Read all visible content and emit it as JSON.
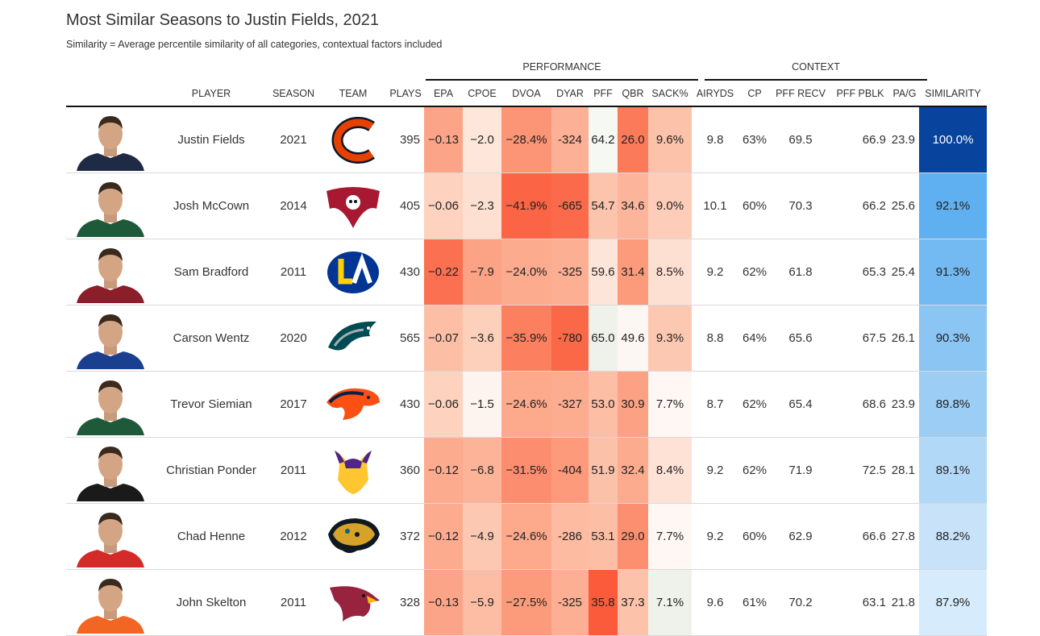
{
  "title": "Most Similar Seasons to Justin Fields, 2021",
  "subtitle": "Similarity = Average percentile similarity of all categories, contextual factors included",
  "groups": {
    "performance": "PERFORMANCE",
    "context": "CONTEXT"
  },
  "columns": {
    "player": "PLAYER",
    "season": "SEASON",
    "team": "TEAM",
    "plays": "PLAYS",
    "epa": "EPA",
    "cpoe": "CPOE",
    "dvoa": "DVOA",
    "dyar": "DYAR",
    "pff": "PFF",
    "qbr": "QBR",
    "sack": "SACK%",
    "airyds": "AIRYDS",
    "cp": "CP",
    "pffrecv": "PFF RECV",
    "pffpblk": "PFF PBLK",
    "pag": "PA/G",
    "similarity": "SIMILARITY"
  },
  "rows": [
    {
      "player": "Justin Fields",
      "season": "2021",
      "team_icon": "chicago-bears-logo-icon",
      "plays": "395",
      "epa": "−0.13",
      "cpoe": "−2.0",
      "dvoa": "−28.4%",
      "dyar": "-324",
      "pff": "64.2",
      "qbr": "26.0",
      "sack": "9.6%",
      "airyds": "9.8",
      "cp": "63%",
      "pffrecv": "69.5",
      "pffpblk": "66.9",
      "pag": "23.9",
      "similarity": "100.0%"
    },
    {
      "player": "Josh McCown",
      "season": "2014",
      "team_icon": "tampa-bay-buccaneers-logo-icon",
      "plays": "405",
      "epa": "−0.06",
      "cpoe": "−2.3",
      "dvoa": "−41.9%",
      "dyar": "-665",
      "pff": "54.7",
      "qbr": "34.6",
      "sack": "9.0%",
      "airyds": "10.1",
      "cp": "60%",
      "pffrecv": "70.3",
      "pffpblk": "66.2",
      "pag": "25.6",
      "similarity": "92.1%"
    },
    {
      "player": "Sam Bradford",
      "season": "2011",
      "team_icon": "los-angeles-rams-logo-icon",
      "plays": "430",
      "epa": "−0.22",
      "cpoe": "−7.9",
      "dvoa": "−24.0%",
      "dyar": "-325",
      "pff": "59.6",
      "qbr": "31.4",
      "sack": "8.5%",
      "airyds": "9.2",
      "cp": "62%",
      "pffrecv": "61.8",
      "pffpblk": "65.3",
      "pag": "25.4",
      "similarity": "91.3%"
    },
    {
      "player": "Carson Wentz",
      "season": "2020",
      "team_icon": "philadelphia-eagles-logo-icon",
      "plays": "565",
      "epa": "−0.07",
      "cpoe": "−3.6",
      "dvoa": "−35.9%",
      "dyar": "-780",
      "pff": "65.0",
      "qbr": "49.6",
      "sack": "9.3%",
      "airyds": "8.8",
      "cp": "64%",
      "pffrecv": "65.6",
      "pffpblk": "67.5",
      "pag": "26.1",
      "similarity": "90.3%"
    },
    {
      "player": "Trevor Siemian",
      "season": "2017",
      "team_icon": "denver-broncos-logo-icon",
      "plays": "430",
      "epa": "−0.06",
      "cpoe": "−1.5",
      "dvoa": "−24.6%",
      "dyar": "-327",
      "pff": "53.0",
      "qbr": "30.9",
      "sack": "7.7%",
      "airyds": "8.7",
      "cp": "62%",
      "pffrecv": "65.4",
      "pffpblk": "68.6",
      "pag": "23.9",
      "similarity": "89.8%"
    },
    {
      "player": "Christian Ponder",
      "season": "2011",
      "team_icon": "minnesota-vikings-logo-icon",
      "plays": "360",
      "epa": "−0.12",
      "cpoe": "−6.8",
      "dvoa": "−31.5%",
      "dyar": "-404",
      "pff": "51.9",
      "qbr": "32.4",
      "sack": "8.4%",
      "airyds": "9.2",
      "cp": "62%",
      "pffrecv": "71.9",
      "pffpblk": "72.5",
      "pag": "28.1",
      "similarity": "89.1%"
    },
    {
      "player": "Chad Henne",
      "season": "2012",
      "team_icon": "jacksonville-jaguars-logo-icon",
      "plays": "372",
      "epa": "−0.12",
      "cpoe": "−4.9",
      "dvoa": "−24.6%",
      "dyar": "-286",
      "pff": "53.1",
      "qbr": "29.0",
      "sack": "7.7%",
      "airyds": "9.2",
      "cp": "60%",
      "pffrecv": "62.9",
      "pffpblk": "66.6",
      "pag": "27.8",
      "similarity": "88.2%"
    },
    {
      "player": "John Skelton",
      "season": "2011",
      "team_icon": "arizona-cardinals-logo-icon",
      "plays": "328",
      "epa": "−0.13",
      "cpoe": "−5.9",
      "dvoa": "−27.5%",
      "dyar": "-325",
      "pff": "35.8",
      "qbr": "37.3",
      "sack": "7.1%",
      "airyds": "9.6",
      "cp": "61%",
      "pffrecv": "70.2",
      "pffpblk": "63.1",
      "pag": "21.8",
      "similarity": "87.9%"
    }
  ],
  "cell_colors": {
    "epa": [
      "#fca488",
      "#fdd2bf",
      "#fb7050",
      "#fcbea5",
      "#fdd2bf",
      "#fcab8f",
      "#fcab8f",
      "#fca488"
    ],
    "cpoe": [
      "#fee6da",
      "#fee0d2",
      "#fca285",
      "#fdd0bc",
      "#fef4ef",
      "#fcb398",
      "#fcc8b2",
      "#fcbda4"
    ],
    "dvoa": [
      "#fc9575",
      "#fb6444",
      "#fcab8f",
      "#fc7f5f",
      "#fca98c",
      "#fc8d6e",
      "#fca98c",
      "#fc9b7c"
    ],
    "dyar": [
      "#fcb095",
      "#fb6b4b",
      "#fcaf93",
      "#fb6848",
      "#fcad90",
      "#fc9a7b",
      "#fdbba1",
      "#fcaf93"
    ],
    "pff": [
      "#f5f8f3",
      "#fcc4ad",
      "#fee5d9",
      "#eef2ea",
      "#fcbea5",
      "#fcc1a9",
      "#fcbea5",
      "#fb5b3a"
    ],
    "qbr": [
      "#fb7a5a",
      "#fcb49a",
      "#fc9b7c",
      "#fdf7f4",
      "#fca184",
      "#fcab8f",
      "#fc8f70",
      "#fcc2aa"
    ],
    "sack": [
      "#fcc2aa",
      "#fdcdb9",
      "#fee0d2",
      "#fcc8b2",
      "#fff7f3",
      "#fee2d5",
      "#fff7f3",
      "#eef2ea"
    ],
    "similarity": [
      "#08439d",
      "#5fb0f0",
      "#74baf2",
      "#8ac5f4",
      "#9ccdf5",
      "#b2d8f7",
      "#c8e3f9",
      "#d6ebfb"
    ]
  },
  "similarity_text_colors": [
    "#ffffff",
    "#222222",
    "#222222",
    "#222222",
    "#222222",
    "#222222",
    "#222222",
    "#222222"
  ],
  "jersey_colors": [
    "#1f2a44",
    "#1e5a3a",
    "#8c1d2a",
    "#1b3f8f",
    "#1e5a3a",
    "#1a1a1a",
    "#d42a2a",
    "#f26522"
  ]
}
